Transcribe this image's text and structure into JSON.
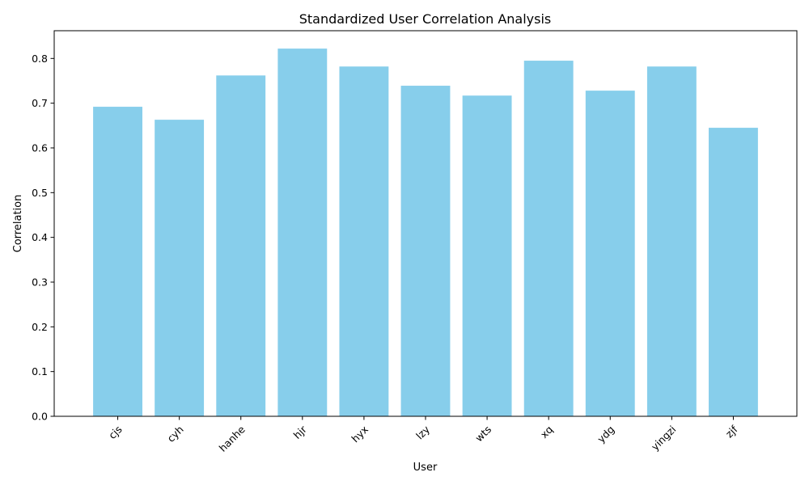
{
  "chart_data": {
    "type": "bar",
    "title": "Standardized User Correlation Analysis",
    "xlabel": "User",
    "ylabel": "Correlation",
    "categories": [
      "cjs",
      "cyh",
      "hanhe",
      "hjr",
      "hyx",
      "lzy",
      "wts",
      "xq",
      "ydg",
      "yingzi",
      "zjf"
    ],
    "values": [
      0.692,
      0.663,
      0.762,
      0.822,
      0.782,
      0.739,
      0.717,
      0.795,
      0.728,
      0.782,
      0.645
    ],
    "ylim": [
      0,
      0.862
    ],
    "yticks": [
      0.0,
      0.1,
      0.2,
      0.3,
      0.4,
      0.5,
      0.6,
      0.7,
      0.8
    ],
    "ytick_labels": [
      "0.0",
      "0.1",
      "0.2",
      "0.3",
      "0.4",
      "0.5",
      "0.6",
      "0.7",
      "0.8"
    ],
    "bar_color": "#87ceeb",
    "grid": false,
    "legend": false,
    "xtick_rotation": 45
  }
}
